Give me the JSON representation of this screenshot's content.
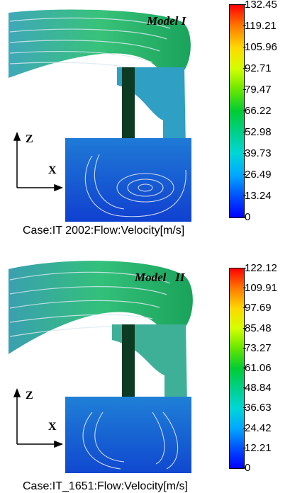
{
  "panels": [
    {
      "title": "Model I",
      "caption": "Case:IT  2002:Flow:Velocity[m/s]",
      "axis_z": "Z",
      "axis_x": "X",
      "colorbar_ticks": [
        "132.45",
        "119.21",
        "105.96",
        "92.71",
        "79.47",
        "66.22",
        "52.98",
        "39.73",
        "26.49",
        "13.24",
        "0"
      ]
    },
    {
      "title": "Model   ІІ",
      "caption": "Case:IT_1651:Flow:Velocity[m/s]",
      "axis_z": "Z",
      "axis_x": "X",
      "colorbar_ticks": [
        "122.12",
        "109.91",
        "97.69",
        "85.48",
        "73.27",
        "61.06",
        "48.84",
        "36.63",
        "24.42",
        "12.21",
        "0"
      ]
    }
  ],
  "colorbar_colors": [
    "#ff0000",
    "#ff7a00",
    "#ffd800",
    "#d4ff00",
    "#66e600",
    "#00cc33",
    "#00d08a",
    "#00d6d6",
    "#00a8ff",
    "#0050ff",
    "#0000ff"
  ]
}
